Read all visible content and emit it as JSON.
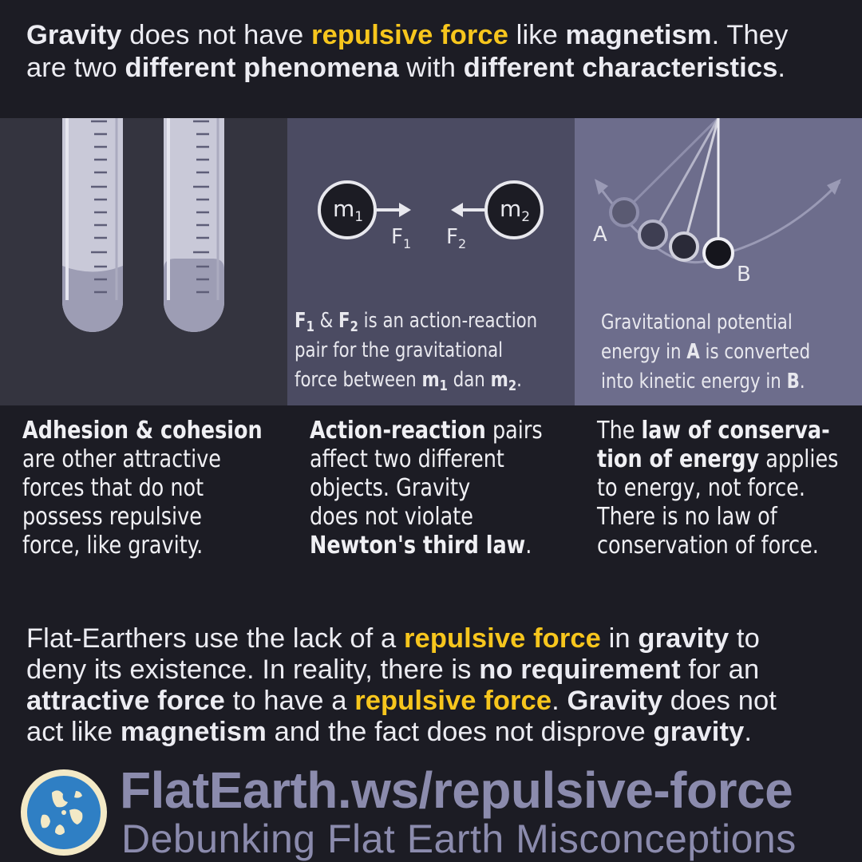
{
  "headline": {
    "w1": "Gravity",
    "w2": " does not have ",
    "w3": "repulsive force",
    "w4": " like ",
    "w5": "magnetism",
    "w6": ". They",
    "w7": "are two ",
    "w8": "different phenomena",
    "w9": " with ",
    "w10": "different characteristics",
    "w11": "."
  },
  "panel2": {
    "m1_letter": "m",
    "m1_sub": "1",
    "m2_letter": "m",
    "m2_sub": "2",
    "f1_letter": "F",
    "f1_sub": "1",
    "f2_letter": "F",
    "f2_sub": "2",
    "caption": {
      "f1": "F",
      "f1_sub": "1",
      "amp": " & ",
      "f2": "F",
      "f2_sub": "2",
      "rest1": " is an action-reaction",
      "line2": "pair for the gravitational",
      "line3a": "force between ",
      "m1": "m",
      "m1_sub": "1",
      "dan": " dan ",
      "m2": "m",
      "m2_sub": "2",
      "end": "."
    }
  },
  "panel3": {
    "label_a": "A",
    "label_b": "B",
    "caption": {
      "line1": "Gravitational potential",
      "line2a": "energy in ",
      "a": "A",
      "line2b": " is converted",
      "line3a": "into kinetic energy in ",
      "b": "B",
      "end": "."
    }
  },
  "col1": {
    "bold": "Adhesion & cohesion",
    "l2": "are other attractive",
    "l3": "forces that do not",
    "l4": "possess repulsive",
    "l5": "force, like gravity."
  },
  "col2": {
    "bold": "Action-reaction",
    "l1b": " pairs",
    "l2": "affect two different",
    "l3": "objects. Gravity",
    "l4": "does not violate",
    "l5bold": "Newton's third law",
    "l5end": "."
  },
  "col3": {
    "l1a": "The ",
    "l1bold": "law of conserva-",
    "l2bold": "tion of energy",
    "l2b": " applies",
    "l3": "to energy, not force.",
    "l4": "There is no law of",
    "l5": "conservation of force."
  },
  "bottom": {
    "a1": "Flat-Earthers use the lack of a ",
    "a2": "repulsive force",
    "a3": " in ",
    "a4": "gravity",
    "a5": " to",
    "b1": "deny its existence. In reality, there is ",
    "b2": "no requirement",
    "b3": " for an",
    "c1": "attractive force",
    "c2": " to have a ",
    "c3": "repulsive force",
    "c4": ".",
    "d1": "Gravity",
    "d2": " does not",
    "e1": "act like ",
    "e2": "magnetism",
    "e3": " and the fact does not disprove ",
    "e4": "gravity",
    "e5": "."
  },
  "footer": {
    "url": "FlatEarth.ws/repulsive-force",
    "tagline": "Debunking Flat Earth Misconceptions"
  },
  "colors": {
    "highlight": "#f7c61d",
    "background": "#1c1c24",
    "panel1": "#34343f",
    "panel2": "#4b4b62",
    "panel3": "#6d6d8c",
    "footer_text": "#8b8bad"
  }
}
